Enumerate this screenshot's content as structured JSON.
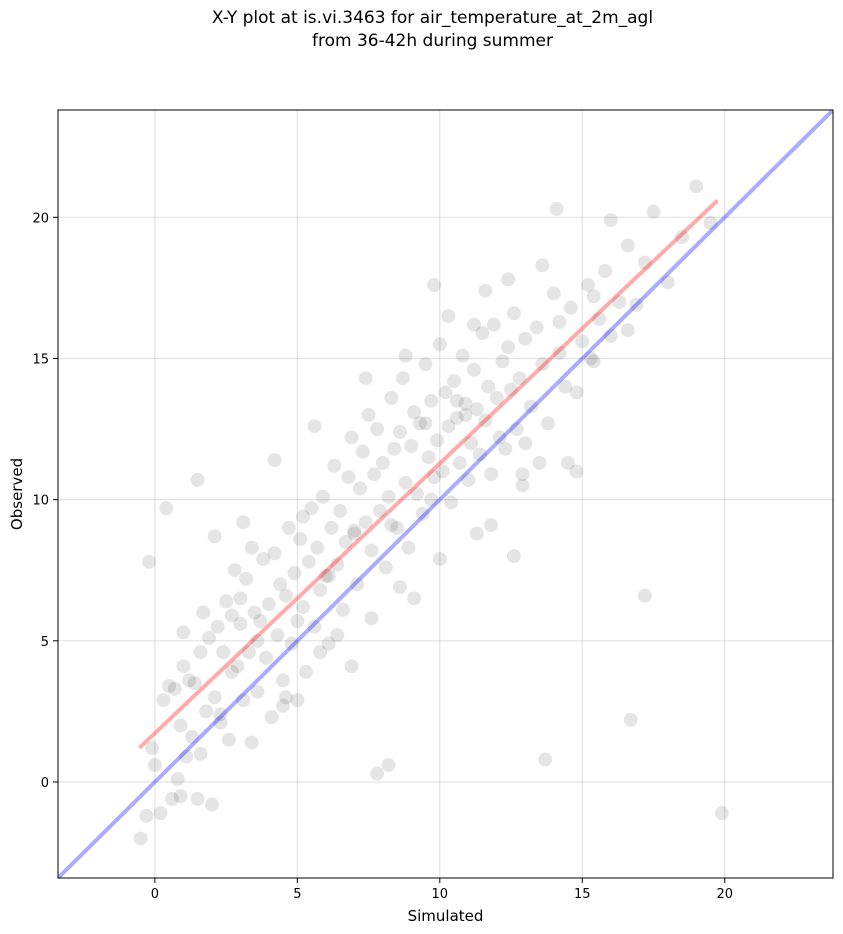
{
  "chart_data": {
    "type": "scatter",
    "title_line1": "X-Y plot at is.vi.3463 for air_temperature_at_2m_agl",
    "title_line2": "from 36-42h during summer",
    "xlabel": "Simulated",
    "ylabel": "Observed",
    "xlim": [
      -3.4,
      23.8
    ],
    "ylim": [
      -3.4,
      23.8
    ],
    "x_ticks": [
      0,
      5,
      10,
      15,
      20
    ],
    "y_ticks": [
      0,
      5,
      10,
      15,
      20
    ],
    "grid": true,
    "point_color": "#000000",
    "point_alpha": 0.1,
    "identity_line": {
      "x": [
        -3.4,
        23.8
      ],
      "y": [
        -3.4,
        23.8
      ],
      "color": "#0000ff",
      "alpha": 0.33
    },
    "regression_line": {
      "x": [
        -0.5,
        19.7
      ],
      "y": [
        1.25,
        20.55
      ],
      "color": "#ff0000",
      "alpha": 0.33
    },
    "points_x": [
      -0.5,
      -0.3,
      0.0,
      0.2,
      0.3,
      0.5,
      0.6,
      0.8,
      0.9,
      1.0,
      1.1,
      1.2,
      1.3,
      1.4,
      1.5,
      1.6,
      1.7,
      1.8,
      1.9,
      2.0,
      2.1,
      2.2,
      2.3,
      2.4,
      2.5,
      2.6,
      2.7,
      2.8,
      2.9,
      3.0,
      3.1,
      3.2,
      3.3,
      3.4,
      3.5,
      3.6,
      3.7,
      3.8,
      3.9,
      4.0,
      4.1,
      4.2,
      4.3,
      4.4,
      4.5,
      4.6,
      4.7,
      4.8,
      4.9,
      5.0,
      5.1,
      5.2,
      5.3,
      5.4,
      5.5,
      5.6,
      5.7,
      5.8,
      5.9,
      6.0,
      6.1,
      6.2,
      6.3,
      6.4,
      6.5,
      6.6,
      6.7,
      6.8,
      6.9,
      7.0,
      7.1,
      7.2,
      7.3,
      7.4,
      7.5,
      7.6,
      7.7,
      7.8,
      7.9,
      8.0,
      8.1,
      8.2,
      8.3,
      8.4,
      8.5,
      8.6,
      8.7,
      8.8,
      8.9,
      9.0,
      9.1,
      9.2,
      9.3,
      9.4,
      9.5,
      9.6,
      9.7,
      9.8,
      9.9,
      10.0,
      10.1,
      10.2,
      10.3,
      10.4,
      10.5,
      10.6,
      10.7,
      10.8,
      10.9,
      11.0,
      11.1,
      11.2,
      11.3,
      11.4,
      11.5,
      11.6,
      11.7,
      11.8,
      11.9,
      12.0,
      12.1,
      12.2,
      12.3,
      12.4,
      12.5,
      12.6,
      12.7,
      12.8,
      12.9,
      13.0,
      13.2,
      13.4,
      13.6,
      13.8,
      14.0,
      14.2,
      14.4,
      14.6,
      14.8,
      15.0,
      15.2,
      15.4,
      15.6,
      15.8,
      16.0,
      16.3,
      16.6,
      16.9,
      17.2,
      17.5,
      18.0,
      18.5,
      19.0,
      19.5,
      19.9,
      -0.1,
      0.7,
      1.0,
      1.6,
      2.3,
      3.0,
      3.6,
      4.5,
      5.2,
      5.8,
      6.4,
      7.0,
      7.6,
      8.2,
      8.6,
      9.5,
      10.0,
      10.6,
      11.2,
      11.8,
      12.4,
      13.0,
      13.6,
      14.2,
      14.8,
      15.4,
      16.0,
      16.6,
      17.2,
      -0.2,
      0.4,
      1.5,
      2.1,
      3.4,
      4.2,
      5.6,
      6.9,
      7.4,
      8.8,
      9.7,
      10.3,
      11.6,
      12.9,
      13.5,
      14.1,
      15.3,
      16.7,
      4.6,
      8.3,
      9.8,
      10.9,
      12.6,
      13.7,
      3.1,
      6.1,
      7.8,
      0.9,
      2.7,
      5.0,
      9.1,
      11.3,
      14.5,
      15.7
    ],
    "points_y": [
      -2.0,
      -1.2,
      0.6,
      -1.1,
      2.9,
      3.4,
      -0.6,
      0.1,
      2.0,
      5.3,
      0.9,
      3.6,
      1.6,
      3.5,
      -0.6,
      4.6,
      6.0,
      2.5,
      5.1,
      -0.8,
      3.0,
      5.5,
      2.1,
      4.6,
      6.4,
      1.5,
      3.9,
      7.5,
      4.1,
      5.6,
      2.9,
      7.2,
      4.6,
      8.3,
      6.0,
      3.2,
      5.7,
      7.9,
      4.4,
      6.3,
      2.3,
      8.1,
      5.2,
      7.0,
      3.6,
      6.6,
      9.0,
      4.9,
      7.4,
      5.7,
      8.6,
      6.2,
      3.9,
      7.8,
      9.7,
      5.5,
      8.3,
      6.8,
      10.1,
      7.3,
      4.9,
      9.0,
      11.2,
      7.7,
      9.6,
      6.1,
      8.5,
      10.8,
      12.2,
      8.9,
      7.0,
      10.4,
      11.7,
      9.2,
      13.0,
      8.2,
      10.9,
      12.5,
      9.6,
      11.3,
      7.6,
      10.1,
      13.6,
      11.8,
      9.0,
      12.4,
      14.3,
      10.6,
      8.3,
      11.9,
      13.1,
      10.2,
      12.7,
      9.5,
      14.8,
      11.5,
      13.5,
      10.8,
      12.1,
      15.5,
      11.0,
      13.8,
      12.6,
      9.9,
      14.2,
      12.9,
      11.3,
      15.1,
      13.4,
      10.7,
      12.0,
      14.6,
      13.2,
      11.6,
      15.9,
      12.8,
      14.0,
      10.9,
      16.2,
      13.6,
      12.2,
      14.9,
      11.8,
      15.4,
      13.9,
      16.6,
      12.5,
      14.3,
      10.5,
      15.7,
      13.3,
      16.1,
      14.8,
      12.7,
      17.3,
      15.2,
      14.0,
      16.8,
      13.8,
      15.6,
      17.6,
      14.9,
      16.4,
      18.1,
      15.8,
      17.0,
      19.0,
      16.9,
      18.4,
      20.2,
      17.7,
      19.3,
      21.1,
      19.8,
      -1.1,
      1.2,
      3.3,
      4.1,
      1.0,
      2.4,
      6.5,
      5.0,
      2.7,
      9.4,
      4.6,
      5.2,
      8.8,
      5.8,
      0.6,
      6.9,
      12.7,
      7.9,
      13.5,
      16.2,
      9.1,
      17.8,
      12.0,
      18.3,
      16.3,
      11.0,
      17.2,
      19.9,
      16.0,
      6.6,
      7.8,
      9.7,
      10.7,
      8.7,
      1.4,
      11.4,
      12.6,
      4.1,
      14.3,
      15.1,
      10.0,
      16.5,
      17.4,
      10.9,
      11.3,
      20.3,
      15.0,
      2.2,
      3.0,
      9.1,
      17.6,
      13.0,
      8.0,
      0.8,
      9.2,
      7.3,
      0.3,
      -0.5,
      5.9,
      2.9,
      6.5,
      8.8,
      11.3
    ],
    "all_points_x_comment": ""
  }
}
